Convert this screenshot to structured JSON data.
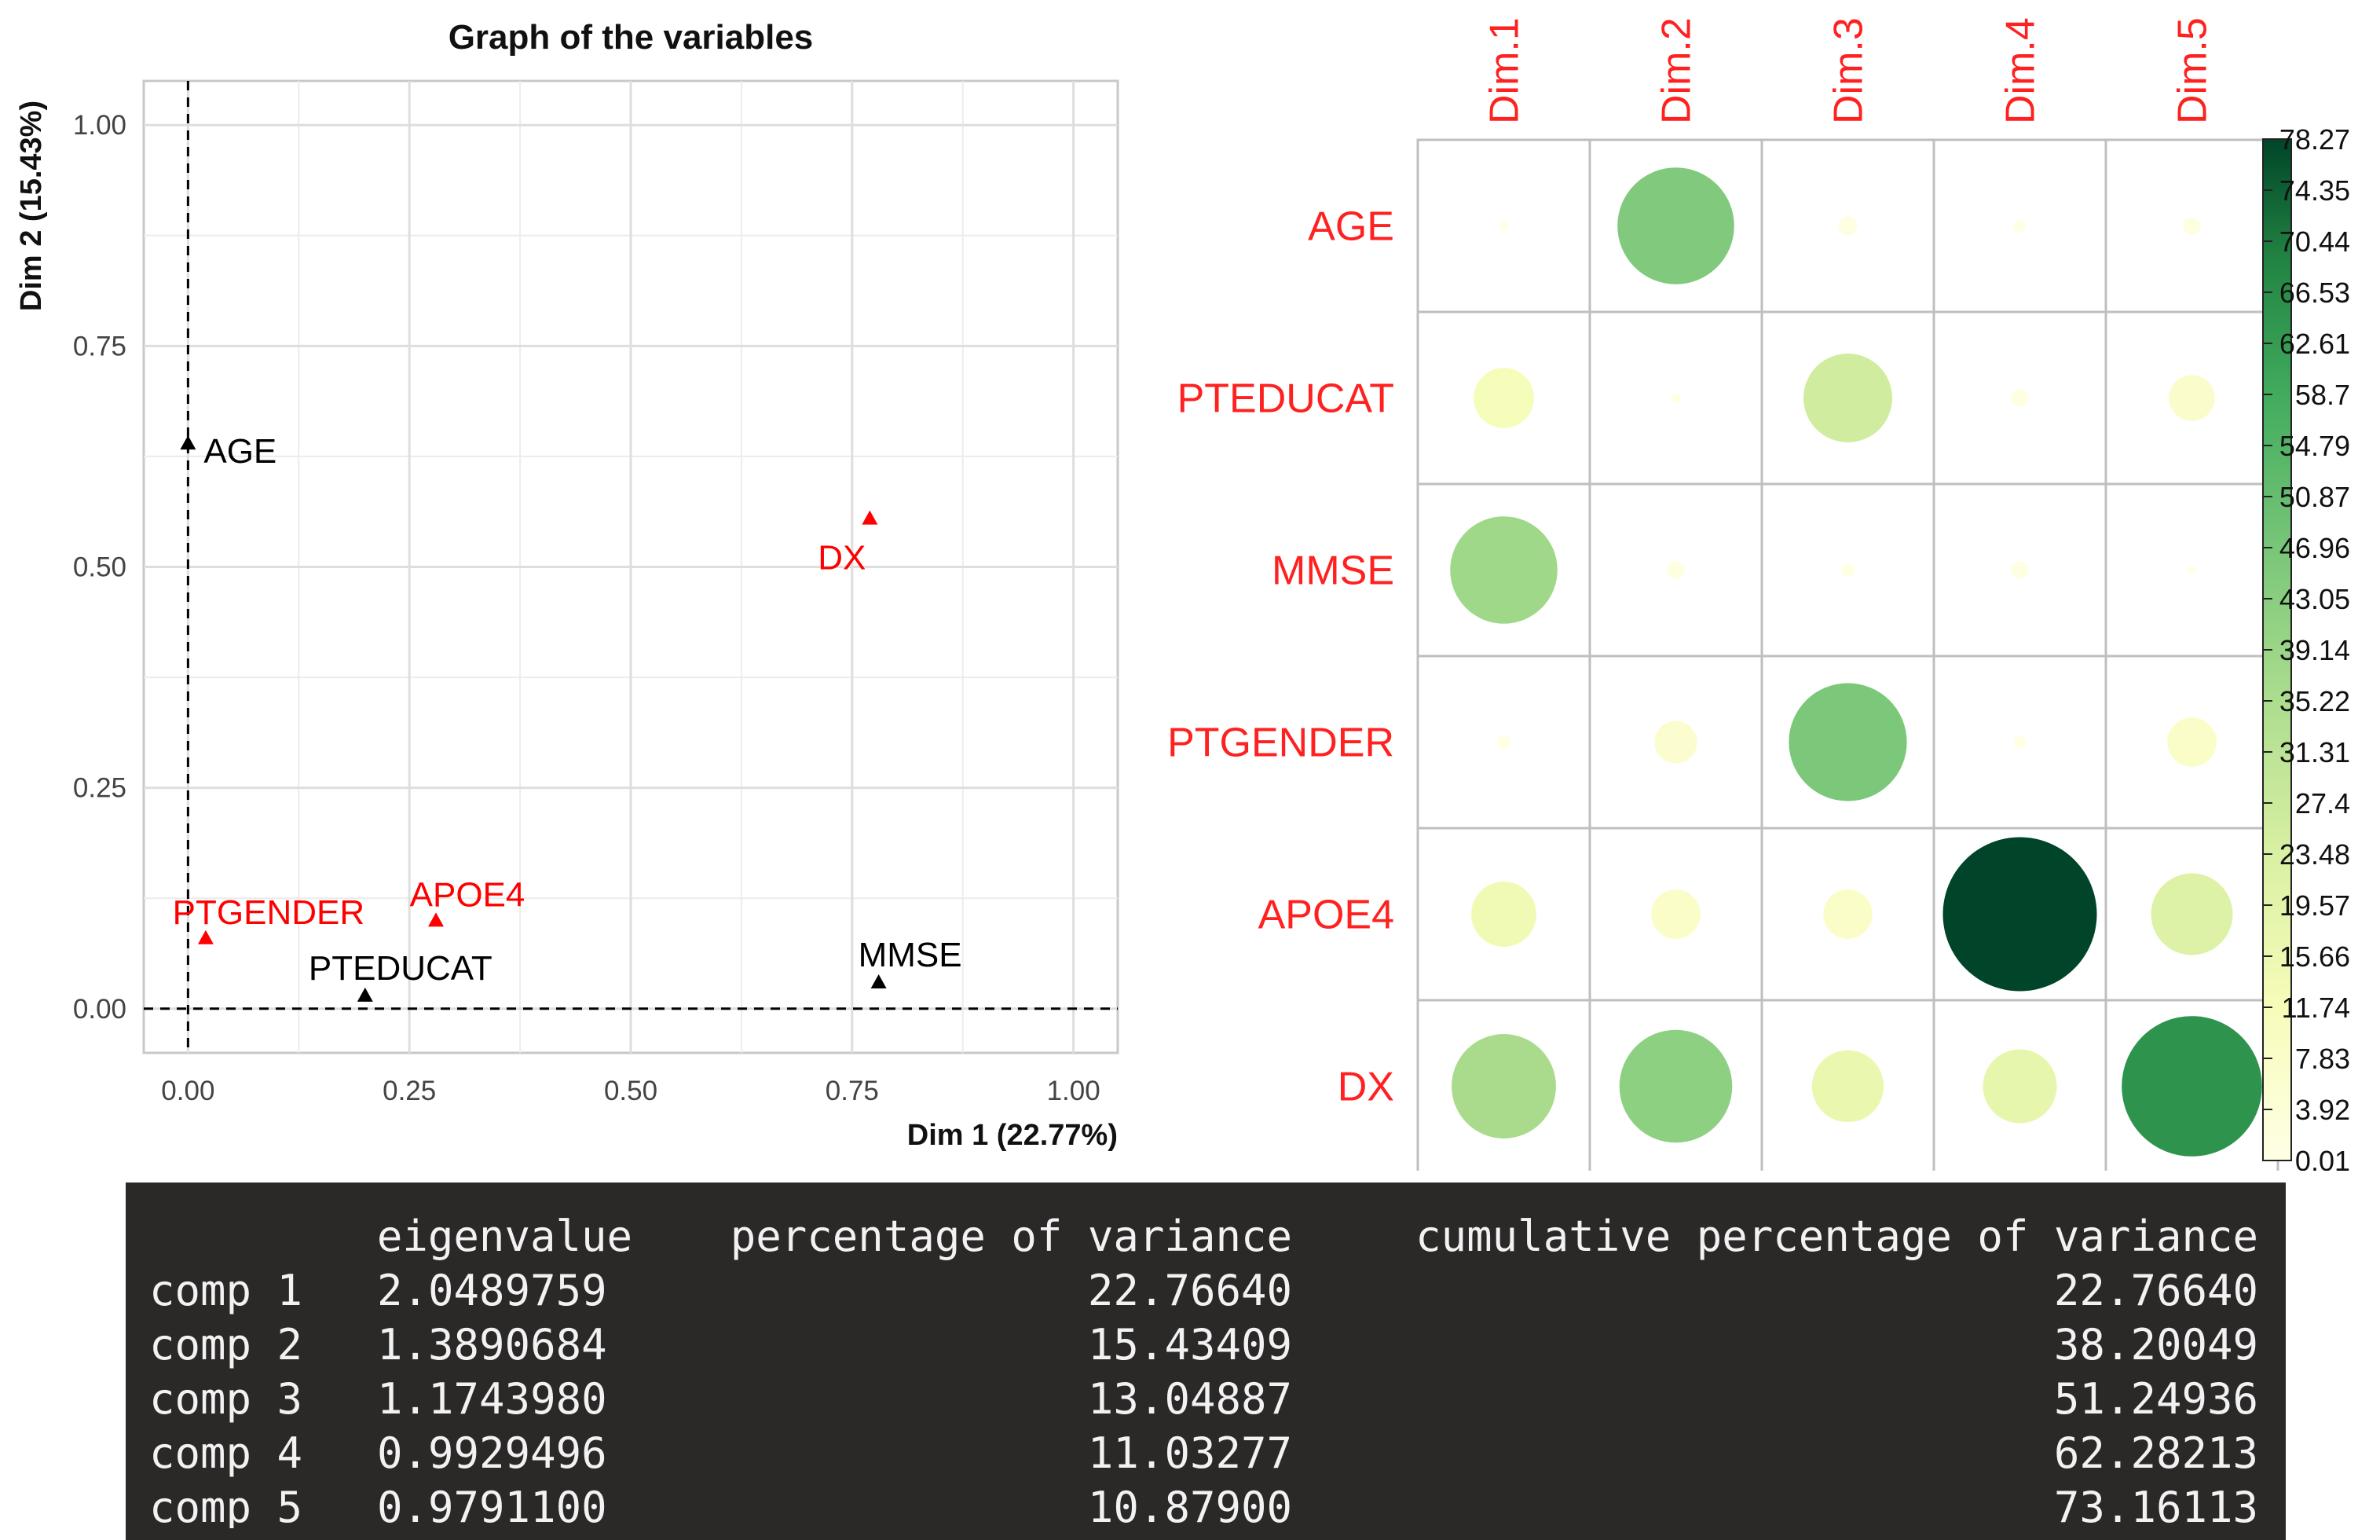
{
  "chart_data": [
    {
      "type": "scatter",
      "title": "Graph of the variables",
      "xlabel": "Dim 1 (22.77%)",
      "ylabel": "Dim 2 (15.43%)",
      "xlim": [
        -0.05,
        1.05
      ],
      "ylim": [
        -0.05,
        1.05
      ],
      "xticks": [
        0,
        0.25,
        0.5,
        0.75,
        1
      ],
      "xtick_labels": [
        "0.00",
        "0.25",
        "0.50",
        "0.75",
        "1.00"
      ],
      "yticks": [
        0,
        0.25,
        0.5,
        0.75,
        1
      ],
      "ytick_labels": [
        "0.00",
        "0.25",
        "0.50",
        "0.75",
        "1.00"
      ],
      "grid": true,
      "reference_lines": {
        "x": 0,
        "y": 0
      },
      "points": [
        {
          "label": "AGE",
          "x": 0.0,
          "y": 0.64,
          "color": "#000000"
        },
        {
          "label": "DX",
          "x": 0.77,
          "y": 0.555,
          "color": "#ff0000"
        },
        {
          "label": "PTGENDER",
          "x": 0.02,
          "y": 0.08,
          "color": "#ff0000"
        },
        {
          "label": "APOE4",
          "x": 0.28,
          "y": 0.1,
          "color": "#ff0000"
        },
        {
          "label": "PTEDUCAT",
          "x": 0.2,
          "y": 0.015,
          "color": "#000000"
        },
        {
          "label": "MMSE",
          "x": 0.78,
          "y": 0.03,
          "color": "#000000"
        }
      ]
    },
    {
      "type": "heatmap",
      "columns": [
        "Dim.1",
        "Dim.2",
        "Dim.3",
        "Dim.4",
        "Dim.5"
      ],
      "rows": [
        "AGE",
        "PTEDUCAT",
        "MMSE",
        "PTGENDER",
        "APOE4",
        "DX"
      ],
      "values": [
        [
          0.3,
          45.0,
          1.2,
          0.5,
          1.0
        ],
        [
          12.0,
          0.3,
          26.0,
          1.0,
          7.0
        ],
        [
          38.0,
          1.0,
          0.6,
          1.0,
          0.2
        ],
        [
          0.6,
          6.0,
          46.0,
          0.5,
          8.0
        ],
        [
          14.0,
          8.0,
          8.0,
          78.27,
          22.0
        ],
        [
          36.0,
          42.0,
          17.0,
          18.0,
          65.0
        ]
      ],
      "color_scale": {
        "min": 0.01,
        "max": 78.27,
        "low_color": "#ffffe5",
        "high_color": "#004529",
        "tick_labels": [
          "78.27",
          "74.35",
          "70.44",
          "66.53",
          "62.61",
          "58.7",
          "54.79",
          "50.87",
          "46.96",
          "43.05",
          "39.14",
          "35.22",
          "31.31",
          "27.4",
          "23.48",
          "19.57",
          "15.66",
          "11.74",
          "7.83",
          "3.92",
          "0.01"
        ]
      },
      "label_color": "#ff2020"
    },
    {
      "type": "table",
      "columns": [
        "",
        "eigenvalue",
        "percentage of variance",
        "cumulative percentage of variance"
      ],
      "rows": [
        [
          "comp 1",
          "2.0489759",
          "22.76640",
          "22.76640"
        ],
        [
          "comp 2",
          "1.3890684",
          "15.43409",
          "38.20049"
        ],
        [
          "comp 3",
          "1.1743980",
          "13.04887",
          "51.24936"
        ],
        [
          "comp 4",
          "0.9929496",
          "11.03277",
          "62.28213"
        ],
        [
          "comp 5",
          "0.9791100",
          "10.87900",
          "73.16113"
        ]
      ]
    }
  ]
}
